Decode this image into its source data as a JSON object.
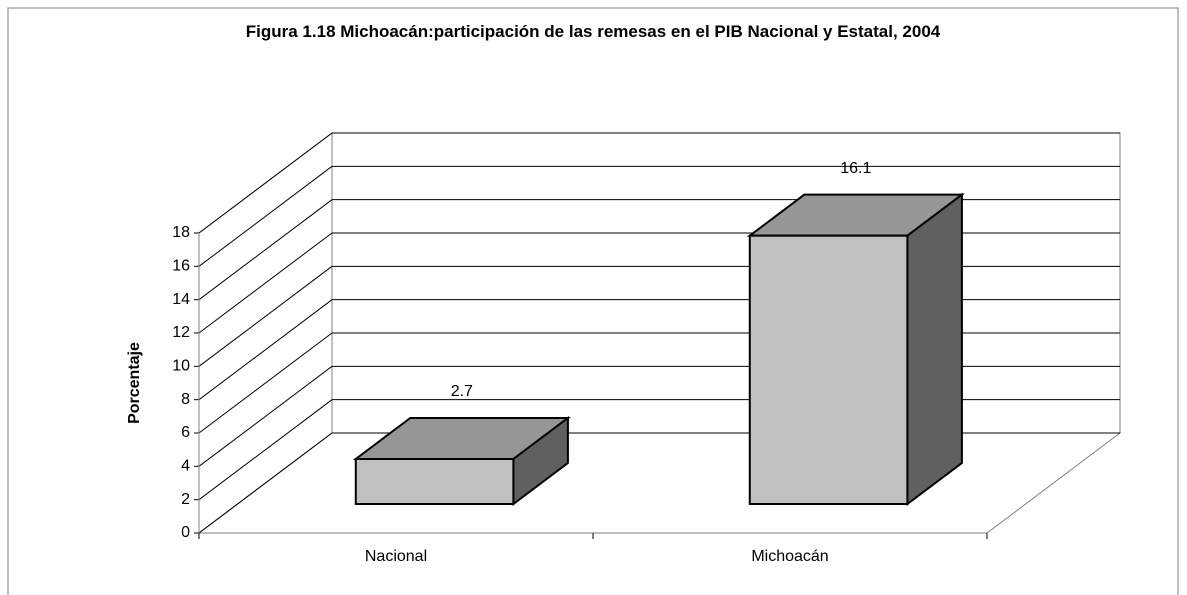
{
  "chart_data": {
    "type": "bar3d",
    "title": "Figura 1.18 Michoacán:participación de las remesas en el PIB Nacional y Estatal, 2004",
    "y_label": "Porcentaje",
    "categories": [
      "Nacional",
      "Michoacán"
    ],
    "values": [
      2.7,
      16.1
    ],
    "color": "#c0c0c0",
    "ylim": [
      0,
      18
    ],
    "yticks": [
      0,
      2,
      4,
      6,
      8,
      10,
      12,
      14,
      16,
      18
    ],
    "grid": true
  }
}
